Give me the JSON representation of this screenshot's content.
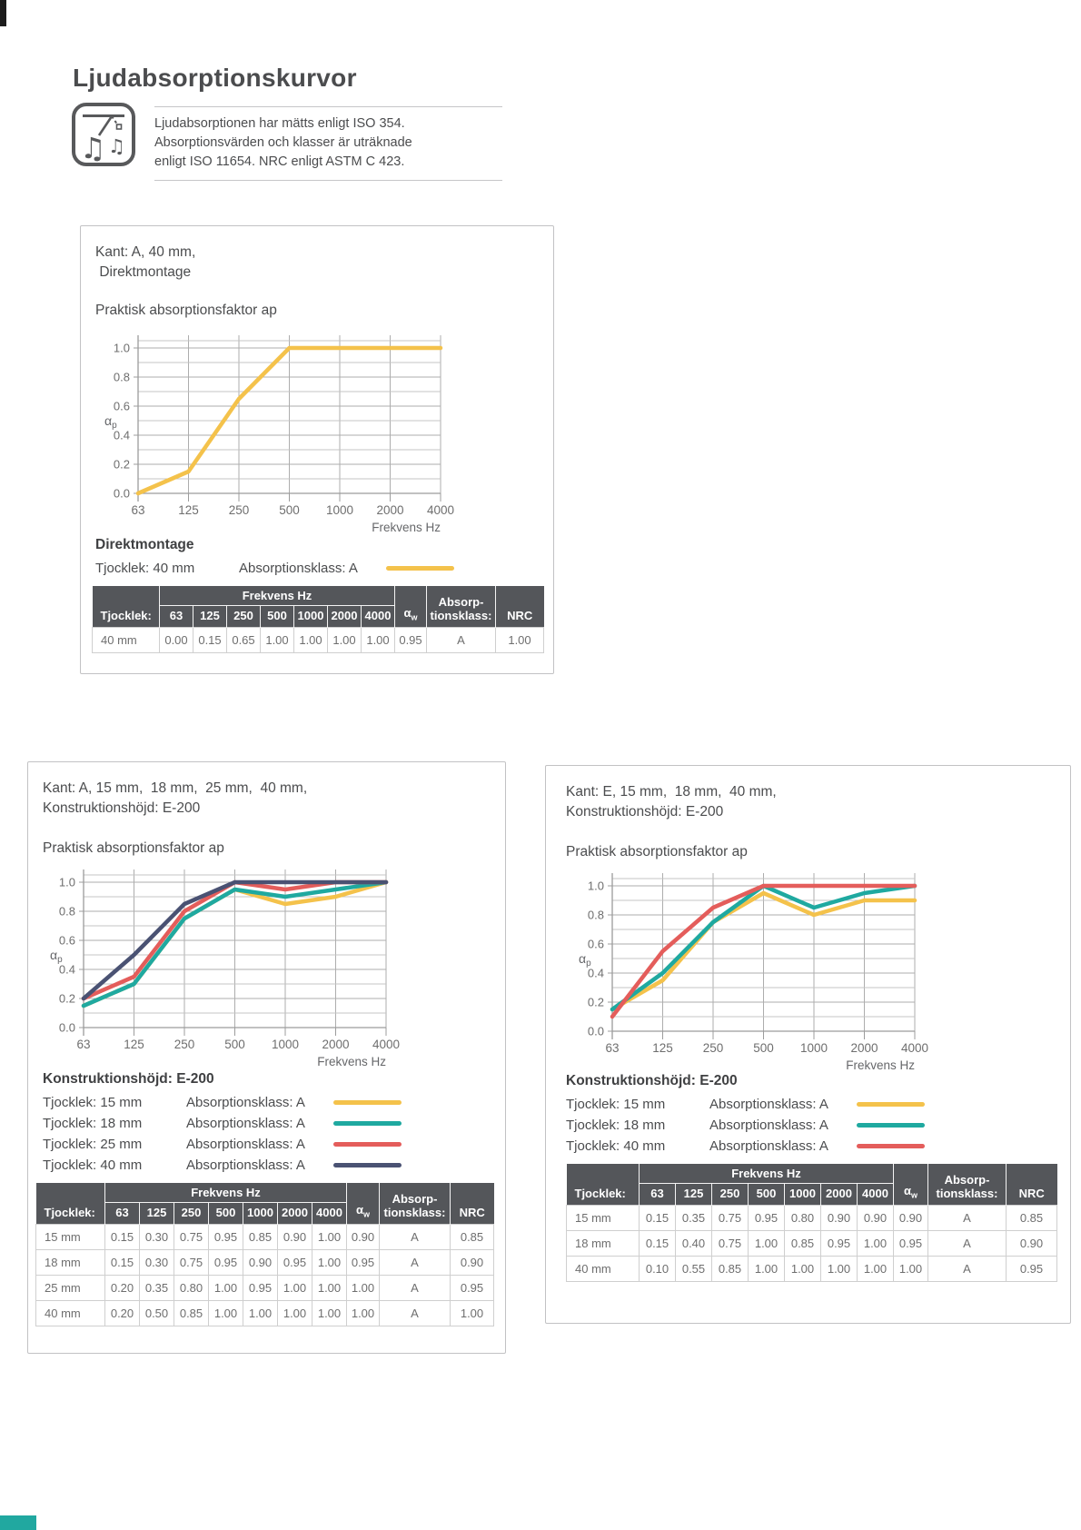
{
  "page": {
    "title": "Ljudabsorptionskurvor",
    "icon": "music-note-absorption-icon",
    "description_lines": [
      "Ljudabsorptionen har mätts enligt ISO 354.",
      "Absorptionsvärden och klasser är uträknade",
      "enligt ISO 11654. NRC enligt ASTM C 423."
    ]
  },
  "colors": {
    "yellow": "#F4C24B",
    "teal": "#1FA9A0",
    "red": "#E45D5B",
    "navy": "#4A5273",
    "header_bg": "#54565A",
    "text_dark": "#4B4C4E",
    "text_gray": "#6E6E6E",
    "grid_major": "#ADADAD",
    "grid_minor": "#C4C4C4",
    "axis": "#9C9C9C",
    "panel_border": "#C2C2C4"
  },
  "shared": {
    "chart_title": "Praktisk absorptionsfaktor ap",
    "x_axis_label": "Frekvens Hz",
    "y_axis_label_base": "α",
    "y_axis_label_sub": "p",
    "x_ticks": [
      "63",
      "125",
      "250",
      "500",
      "1000",
      "2000",
      "4000"
    ],
    "y_ticks": [
      "0.0",
      "0.2",
      "0.4",
      "0.6",
      "0.8",
      "1.0"
    ],
    "table": {
      "col_thickness": "Tjocklek:",
      "col_freq_group": "Frekvens Hz",
      "freqs": [
        "63",
        "125",
        "250",
        "500",
        "1000",
        "2000",
        "4000"
      ],
      "col_alpha_base": "α",
      "col_alpha_sub": "w",
      "col_class_line1": "Absorp-",
      "col_class_line2": "tionsklass:",
      "col_nrc": "NRC"
    }
  },
  "panels": [
    {
      "kant_line1": "Kant: A, 40 mm,",
      "kant_line2": " Direktmontage",
      "legend_heading": "Direktmontage",
      "legend": [
        {
          "label": "Tjocklek: 40 mm",
          "class_label": "Absorptionsklass: A",
          "color_key": "yellow"
        }
      ],
      "table_rows": [
        {
          "thickness": "40 mm",
          "values": [
            "0.00",
            "0.15",
            "0.65",
            "1.00",
            "1.00",
            "1.00",
            "1.00"
          ],
          "aw": "0.95",
          "klass": "A",
          "nrc": "1.00"
        }
      ]
    },
    {
      "kant_line1": "Kant: A, 15 mm,  18 mm,  25 mm,  40 mm,",
      "kant_line2": "Konstruktionshöjd: E-200",
      "legend_heading": "Konstruktionshöjd: E-200",
      "legend": [
        {
          "label": "Tjocklek: 15 mm",
          "class_label": "Absorptionsklass: A",
          "color_key": "yellow"
        },
        {
          "label": "Tjocklek: 18 mm",
          "class_label": "Absorptionsklass: A",
          "color_key": "teal"
        },
        {
          "label": "Tjocklek: 25 mm",
          "class_label": "Absorptionsklass: A",
          "color_key": "red"
        },
        {
          "label": "Tjocklek: 40 mm",
          "class_label": "Absorptionsklass: A",
          "color_key": "navy"
        }
      ],
      "table_rows": [
        {
          "thickness": "15 mm",
          "values": [
            "0.15",
            "0.30",
            "0.75",
            "0.95",
            "0.85",
            "0.90",
            "1.00"
          ],
          "aw": "0.90",
          "klass": "A",
          "nrc": "0.85"
        },
        {
          "thickness": "18 mm",
          "values": [
            "0.15",
            "0.30",
            "0.75",
            "0.95",
            "0.90",
            "0.95",
            "1.00"
          ],
          "aw": "0.95",
          "klass": "A",
          "nrc": "0.90"
        },
        {
          "thickness": "25 mm",
          "values": [
            "0.20",
            "0.35",
            "0.80",
            "1.00",
            "0.95",
            "1.00",
            "1.00"
          ],
          "aw": "1.00",
          "klass": "A",
          "nrc": "0.95"
        },
        {
          "thickness": "40 mm",
          "values": [
            "0.20",
            "0.50",
            "0.85",
            "1.00",
            "1.00",
            "1.00",
            "1.00"
          ],
          "aw": "1.00",
          "klass": "A",
          "nrc": "1.00"
        }
      ]
    },
    {
      "kant_line1": "Kant: E, 15 mm,  18 mm,  40 mm,",
      "kant_line2": "Konstruktionshöjd: E-200",
      "legend_heading": "Konstruktionshöjd: E-200",
      "legend": [
        {
          "label": "Tjocklek: 15 mm",
          "class_label": "Absorptionsklass: A",
          "color_key": "yellow"
        },
        {
          "label": "Tjocklek: 18 mm",
          "class_label": "Absorptionsklass: A",
          "color_key": "teal"
        },
        {
          "label": "Tjocklek: 40 mm",
          "class_label": "Absorptionsklass: A",
          "color_key": "red"
        }
      ],
      "table_rows": [
        {
          "thickness": "15 mm",
          "values": [
            "0.15",
            "0.35",
            "0.75",
            "0.95",
            "0.80",
            "0.90",
            "0.90"
          ],
          "aw": "0.90",
          "klass": "A",
          "nrc": "0.85"
        },
        {
          "thickness": "18 mm",
          "values": [
            "0.15",
            "0.40",
            "0.75",
            "1.00",
            "0.85",
            "0.95",
            "1.00"
          ],
          "aw": "0.95",
          "klass": "A",
          "nrc": "0.90"
        },
        {
          "thickness": "40 mm",
          "values": [
            "0.10",
            "0.55",
            "0.85",
            "1.00",
            "1.00",
            "1.00",
            "1.00"
          ],
          "aw": "1.00",
          "klass": "A",
          "nrc": "0.95"
        }
      ]
    }
  ],
  "chart_data": [
    {
      "type": "line",
      "title": "Praktisk absorptionsfaktor ap",
      "xlabel": "Frekvens Hz",
      "ylabel": "αp",
      "x": [
        "63",
        "125",
        "250",
        "500",
        "1000",
        "2000",
        "4000"
      ],
      "ylim": [
        0,
        1.05
      ],
      "grid": true,
      "series": [
        {
          "name": "40 mm",
          "color_key": "yellow",
          "values": [
            0.0,
            0.15,
            0.65,
            1.0,
            1.0,
            1.0,
            1.0
          ]
        }
      ]
    },
    {
      "type": "line",
      "title": "Praktisk absorptionsfaktor ap",
      "xlabel": "Frekvens Hz",
      "ylabel": "αp",
      "x": [
        "63",
        "125",
        "250",
        "500",
        "1000",
        "2000",
        "4000"
      ],
      "ylim": [
        0,
        1.05
      ],
      "grid": true,
      "series": [
        {
          "name": "15 mm",
          "color_key": "yellow",
          "values": [
            0.15,
            0.3,
            0.75,
            0.95,
            0.85,
            0.9,
            1.0
          ]
        },
        {
          "name": "18 mm",
          "color_key": "teal",
          "values": [
            0.15,
            0.3,
            0.75,
            0.95,
            0.9,
            0.95,
            1.0
          ]
        },
        {
          "name": "25 mm",
          "color_key": "red",
          "values": [
            0.2,
            0.35,
            0.8,
            1.0,
            0.95,
            1.0,
            1.0
          ]
        },
        {
          "name": "40 mm",
          "color_key": "navy",
          "values": [
            0.2,
            0.5,
            0.85,
            1.0,
            1.0,
            1.0,
            1.0
          ]
        }
      ]
    },
    {
      "type": "line",
      "title": "Praktisk absorptionsfaktor ap",
      "xlabel": "Frekvens Hz",
      "ylabel": "αp",
      "x": [
        "63",
        "125",
        "250",
        "500",
        "1000",
        "2000",
        "4000"
      ],
      "ylim": [
        0,
        1.05
      ],
      "grid": true,
      "series": [
        {
          "name": "15 mm",
          "color_key": "yellow",
          "values": [
            0.15,
            0.35,
            0.75,
            0.95,
            0.8,
            0.9,
            0.9
          ]
        },
        {
          "name": "18 mm",
          "color_key": "teal",
          "values": [
            0.15,
            0.4,
            0.75,
            1.0,
            0.85,
            0.95,
            1.0
          ]
        },
        {
          "name": "40 mm",
          "color_key": "red",
          "values": [
            0.1,
            0.55,
            0.85,
            1.0,
            1.0,
            1.0,
            1.0
          ]
        }
      ]
    }
  ]
}
